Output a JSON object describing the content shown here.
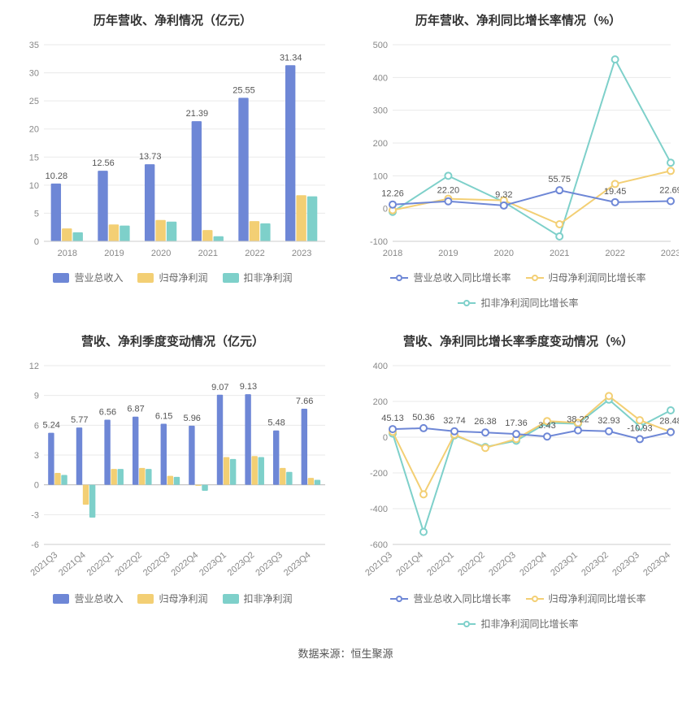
{
  "colors": {
    "bar1": "#6e87d6",
    "bar2": "#f3cf74",
    "bar3": "#7ed0ca",
    "line1": "#6e87d6",
    "line2": "#f3cf74",
    "line3": "#7ed0ca",
    "grid": "#eaeaea",
    "axis": "#cccccc",
    "text": "#888888",
    "zero": "#bbbbbb"
  },
  "footer": "数据来源：恒生聚源",
  "chart_tl": {
    "title": "历年营收、净利情况（亿元）",
    "type": "bar",
    "categories": [
      "2018",
      "2019",
      "2020",
      "2021",
      "2022",
      "2023"
    ],
    "series": [
      {
        "name": "营业总收入",
        "color": "#6e87d6",
        "values": [
          10.28,
          12.56,
          13.73,
          21.39,
          25.55,
          31.34
        ]
      },
      {
        "name": "归母净利润",
        "color": "#f3cf74",
        "values": [
          2.3,
          3.0,
          3.8,
          2.0,
          3.6,
          8.2
        ]
      },
      {
        "name": "扣非净利润",
        "color": "#7ed0ca",
        "values": [
          1.6,
          2.8,
          3.5,
          0.9,
          3.2,
          8.0
        ]
      }
    ],
    "labels": [
      "10.28",
      "12.56",
      "13.73",
      "21.39",
      "25.55",
      "31.34"
    ],
    "ylim": [
      0,
      35
    ],
    "ytick_step": 5,
    "legend": [
      "营业总收入",
      "归母净利润",
      "扣非净利润"
    ]
  },
  "chart_tr": {
    "title": "历年营收、净利同比增长率情况（%）",
    "type": "line",
    "categories": [
      "2018",
      "2019",
      "2020",
      "2021",
      "2022",
      "2023"
    ],
    "series": [
      {
        "name": "营业总收入同比增长率",
        "color": "#6e87d6",
        "values": [
          12.26,
          22.2,
          9.32,
          55.75,
          19.45,
          22.69
        ]
      },
      {
        "name": "归母净利润同比增长率",
        "color": "#f3cf74",
        "values": [
          -5,
          30,
          25,
          -48,
          75,
          115
        ]
      },
      {
        "name": "扣非净利润同比增长率",
        "color": "#7ed0ca",
        "values": [
          -10,
          100,
          20,
          -85,
          455,
          140
        ]
      }
    ],
    "labels": [
      "12.26",
      "22.20",
      "9.32",
      "55.75",
      "19.45",
      "22.69"
    ],
    "ylim": [
      -100,
      500
    ],
    "ytick_step": 100,
    "legend": [
      "营业总收入同比增长率",
      "归母净利润同比增长率",
      "扣非净利润同比增长率"
    ]
  },
  "chart_bl": {
    "title": "营收、净利季度变动情况（亿元）",
    "type": "bar",
    "categories": [
      "2021Q3",
      "2021Q4",
      "2022Q1",
      "2022Q2",
      "2022Q3",
      "2022Q4",
      "2023Q1",
      "2023Q2",
      "2023Q3",
      "2023Q4"
    ],
    "series": [
      {
        "name": "营业总收入",
        "color": "#6e87d6",
        "values": [
          5.24,
          5.77,
          6.56,
          6.87,
          6.15,
          5.96,
          9.07,
          9.13,
          5.48,
          7.66
        ]
      },
      {
        "name": "归母净利润",
        "color": "#f3cf74",
        "values": [
          1.2,
          -2.0,
          1.6,
          1.7,
          0.9,
          -0.1,
          2.8,
          2.9,
          1.7,
          0.7
        ]
      },
      {
        "name": "扣非净利润",
        "color": "#7ed0ca",
        "values": [
          1.0,
          -3.3,
          1.6,
          1.6,
          0.8,
          -0.6,
          2.6,
          2.8,
          1.3,
          0.5
        ]
      }
    ],
    "labels": [
      "5.24",
      "5.77",
      "6.56",
      "6.87",
      "6.15",
      "5.96",
      "9.07",
      "9.13",
      "5.48",
      "7.66"
    ],
    "ylim": [
      -6,
      12
    ],
    "ytick_step": 3,
    "legend": [
      "营业总收入",
      "归母净利润",
      "扣非净利润"
    ],
    "rotate_x": true
  },
  "chart_br": {
    "title": "营收、净利同比增长率季度变动情况（%）",
    "type": "line",
    "categories": [
      "2021Q3",
      "2021Q4",
      "2022Q1",
      "2022Q2",
      "2022Q3",
      "2022Q4",
      "2023Q1",
      "2023Q2",
      "2023Q3",
      "2023Q4"
    ],
    "series": [
      {
        "name": "营业总收入同比增长率",
        "color": "#6e87d6",
        "values": [
          45.13,
          50.36,
          32.74,
          26.38,
          17.36,
          3.43,
          38.22,
          32.93,
          -10.93,
          28.48
        ]
      },
      {
        "name": "归母净利润同比增长率",
        "color": "#f3cf74",
        "values": [
          30,
          -320,
          15,
          -60,
          -10,
          90,
          80,
          230,
          95,
          30
        ]
      },
      {
        "name": "扣非净利润同比增长率",
        "color": "#7ed0ca",
        "values": [
          20,
          -530,
          10,
          -55,
          -20,
          80,
          75,
          210,
          60,
          150
        ]
      }
    ],
    "labels": [
      "45.13",
      "50.36",
      "32.74",
      "26.38",
      "17.36",
      "3.43",
      "38.22",
      "32.93",
      "-10.93",
      "28.48"
    ],
    "ylim": [
      -600,
      400
    ],
    "ytick_step": 200,
    "legend": [
      "营业总收入同比增长率",
      "归母净利润同比增长率",
      "扣非净利润同比增长率"
    ],
    "rotate_x": true
  }
}
